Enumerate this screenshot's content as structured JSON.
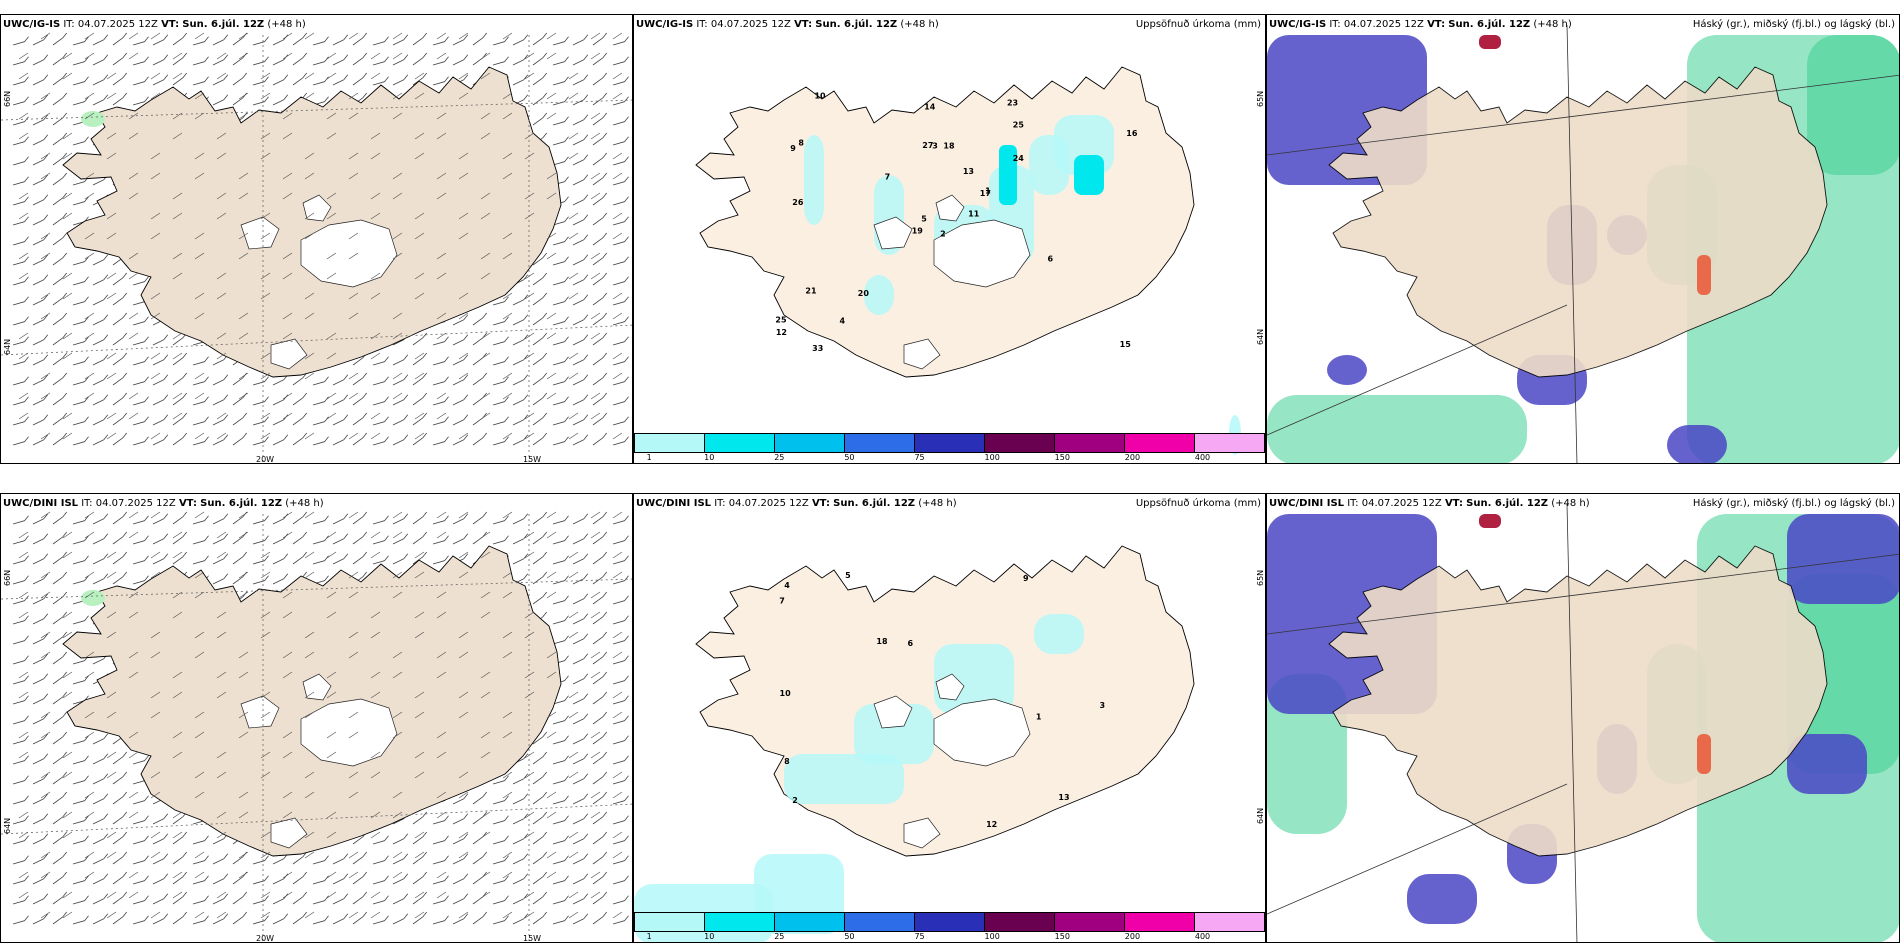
{
  "rows": [
    {
      "model": "UWC/IG-IS",
      "it_label": "IT:",
      "it": "04.07.2025 12Z",
      "vt_label": "VT:",
      "vt": "Sun. 6.júl. 12Z",
      "lead": "(+48 h)"
    },
    {
      "model": "UWC/DINI ISL",
      "it_label": "IT:",
      "it": "04.07.2025 12Z",
      "vt_label": "VT:",
      "vt": "Sun. 6.júl. 12Z",
      "lead": "(+48 h)"
    }
  ],
  "panel_titles": {
    "wind": "",
    "precip": "Uppsöfnuð úrkoma (mm)",
    "cloud": "Háský (gr.), miðský (fj.bl.) og lágský (bl.)"
  },
  "axis_ticks": {
    "lon_20w": "20W",
    "lon_15w": "15W",
    "lat_66n": "66N",
    "lat_64n": "64N",
    "lat_65n_mid": "65N",
    "lat_64n_low": "64N"
  },
  "colorbar": {
    "labels": [
      "1",
      "10",
      "25",
      "50",
      "75",
      "100",
      "150",
      "200",
      "400"
    ],
    "colors": [
      "#b5f8f8",
      "#00e8ee",
      "#00c0ee",
      "#2d6ee8",
      "#2a2fb8",
      "#6a0050",
      "#a00080",
      "#f000a8",
      "#f6a8f4"
    ]
  },
  "precip_values_top": [
    "2",
    "9",
    "5",
    "25",
    "17",
    "20",
    "23",
    "18",
    "25",
    "11",
    "10",
    "15",
    "26",
    "16",
    "19",
    "24",
    "33",
    "27",
    "13",
    "21",
    "7",
    "12",
    "4",
    "3",
    "1",
    "6",
    "8",
    "14"
  ],
  "precip_values_bottom": [
    "1",
    "3",
    "2",
    "5",
    "6",
    "13",
    "8",
    "9",
    "18",
    "12",
    "7",
    "10",
    "4"
  ],
  "cloud_legend": {
    "high": "Háský (gr.)",
    "mid": "miðský (fj.bl.)",
    "low": "lágský (bl.)"
  }
}
